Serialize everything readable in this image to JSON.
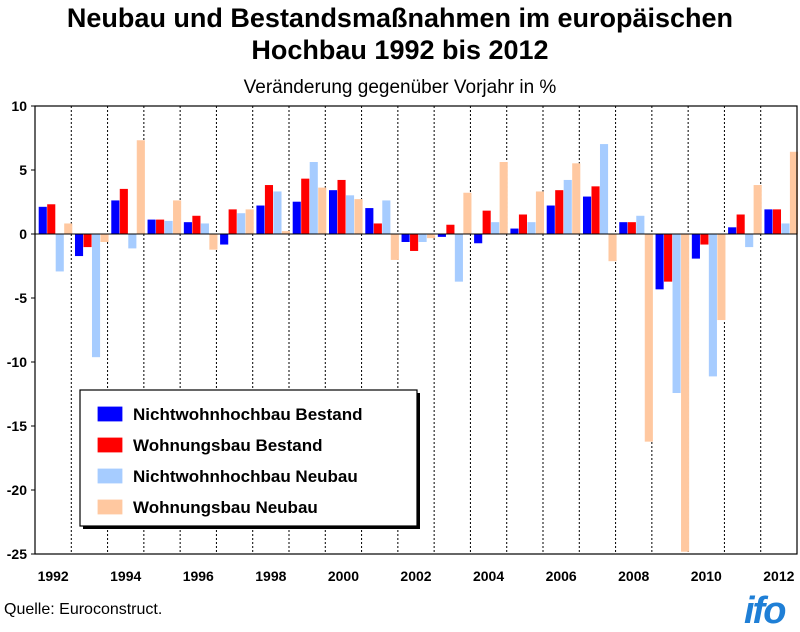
{
  "title_line1": "Neubau und Bestandsmaßnahmen im europäischen",
  "title_line2": "Hochbau 1992 bis 2012",
  "subtitle": "Veränderung gegenüber Vorjahr in %",
  "source": "Quelle: Euroconstruct.",
  "logo_text": "ifo",
  "colors": {
    "nichtwohn_bestand": "#0000ff",
    "wohn_bestand": "#ff0000",
    "nichtwohn_neubau": "#a6ccff",
    "wohn_neubau": "#ffc8a0",
    "background": "#ffffff",
    "grid": "#000000"
  },
  "chart_data": {
    "type": "bar",
    "title": "Neubau und Bestandsmaßnahmen im europäischen Hochbau 1992 bis 2012",
    "subtitle": "Veränderung gegenüber Vorjahr in %",
    "categories": [
      "1992",
      "1993",
      "1994",
      "1995",
      "1996",
      "1997",
      "1998",
      "1999",
      "2000",
      "2001",
      "2002",
      "2003",
      "2004",
      "2005",
      "2006",
      "2007",
      "2008",
      "2009",
      "2010",
      "2011",
      "2012"
    ],
    "x_tick_labels": [
      "1992",
      "1994",
      "1996",
      "1998",
      "2000",
      "2002",
      "2004",
      "2006",
      "2008",
      "2010",
      "2012"
    ],
    "ylim": [
      -25,
      10
    ],
    "yticks": [
      10,
      5,
      0,
      -5,
      -10,
      -15,
      -20,
      -25
    ],
    "grid": "vertical dashed lines between years",
    "legend_position": "bottom-left",
    "series": [
      {
        "name": "Nichtwohnhochbau Bestand",
        "color": "#0000ff",
        "values": [
          2.1,
          -1.7,
          2.6,
          1.1,
          0.9,
          -0.8,
          2.2,
          2.5,
          3.4,
          2.0,
          -0.6,
          -0.2,
          -0.7,
          0.4,
          2.2,
          2.9,
          0.9,
          -4.3,
          -1.9,
          0.5,
          1.9
        ]
      },
      {
        "name": "Wohnungsbau Bestand",
        "color": "#ff0000",
        "values": [
          2.3,
          -1.0,
          3.5,
          1.1,
          1.4,
          1.9,
          3.8,
          4.3,
          4.2,
          0.8,
          -1.3,
          0.7,
          1.8,
          1.5,
          3.4,
          3.7,
          0.9,
          -3.7,
          -0.8,
          1.5,
          1.9
        ]
      },
      {
        "name": "Nichtwohnhochbau Neubau",
        "color": "#a6ccff",
        "values": [
          -2.9,
          -9.6,
          -1.1,
          1.0,
          0.8,
          1.6,
          3.3,
          5.6,
          3.0,
          2.6,
          -0.6,
          -3.7,
          0.9,
          0.9,
          4.2,
          7.0,
          1.4,
          -12.4,
          -11.1,
          -1.0,
          0.8
        ]
      },
      {
        "name": "Wohnungsbau Neubau",
        "color": "#ffc8a0",
        "values": [
          0.8,
          -0.6,
          7.3,
          2.6,
          -1.2,
          1.9,
          0.2,
          3.6,
          2.7,
          -2.0,
          -0.3,
          3.2,
          5.6,
          3.3,
          5.5,
          -2.1,
          -16.2,
          -24.8,
          -6.7,
          3.8,
          6.4
        ]
      }
    ]
  }
}
